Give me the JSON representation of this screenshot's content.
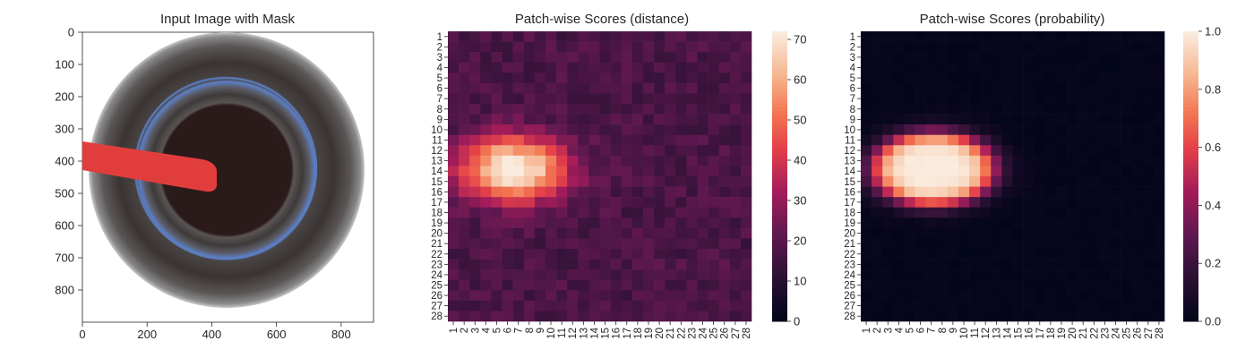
{
  "chart_data": [
    {
      "type": "image",
      "title": "Input Image with Mask",
      "x_ticks": [
        0,
        200,
        400,
        600,
        800
      ],
      "y_ticks": [
        0,
        100,
        200,
        300,
        400,
        500,
        600,
        700,
        800
      ],
      "xlim": [
        0,
        900
      ],
      "ylim": [
        900,
        0
      ],
      "image": {
        "background": "#ffffff",
        "ring_colors": [
          "#8a8a8a",
          "#4a4343",
          "#5b5656",
          "#7e7e86",
          "#3b3030"
        ],
        "glass_edge_color": "#5c7fc6",
        "center_color": "#2a1a1a",
        "center": [
          445,
          510
        ],
        "mask_color": "#e23d3d",
        "mask_polygon": [
          [
            0,
            340
          ],
          [
            390,
            400
          ],
          [
            410,
            420
          ],
          [
            410,
            495
          ],
          [
            380,
            500
          ],
          [
            0,
            430
          ]
        ]
      }
    },
    {
      "type": "heatmap",
      "title": "Patch-wise Scores (distance)",
      "x_ticks": [
        "1",
        "2",
        "3",
        "4",
        "5",
        "6",
        "7",
        "8",
        "9",
        "10",
        "11",
        "12",
        "13",
        "14",
        "15",
        "16",
        "17",
        "18",
        "19",
        "20",
        "21",
        "22",
        "23",
        "24",
        "25",
        "26",
        "27",
        "28"
      ],
      "y_ticks": [
        "1",
        "2",
        "3",
        "4",
        "5",
        "6",
        "7",
        "8",
        "9",
        "10",
        "11",
        "12",
        "13",
        "14",
        "15",
        "16",
        "17",
        "18",
        "19",
        "20",
        "21",
        "22",
        "23",
        "24",
        "25",
        "26",
        "27",
        "28"
      ],
      "colorbar": {
        "min": 0,
        "max": 72,
        "ticks": [
          0,
          10,
          20,
          30,
          40,
          50,
          60,
          70
        ]
      },
      "colormap": "rocket",
      "hot_region": {
        "center_row": 13.8,
        "center_col": 6.5,
        "peak": 72,
        "background": 20
      }
    },
    {
      "type": "heatmap",
      "title": "Patch-wise Scores (probability)",
      "x_ticks": [
        "1",
        "2",
        "3",
        "4",
        "5",
        "6",
        "7",
        "8",
        "9",
        "10",
        "11",
        "12",
        "13",
        "14",
        "15",
        "16",
        "17",
        "18",
        "19",
        "20",
        "21",
        "22",
        "23",
        "24",
        "25",
        "26",
        "27",
        "28"
      ],
      "y_ticks": [
        "1",
        "2",
        "3",
        "4",
        "5",
        "6",
        "7",
        "8",
        "9",
        "10",
        "11",
        "12",
        "13",
        "14",
        "15",
        "16",
        "17",
        "18",
        "19",
        "20",
        "21",
        "22",
        "23",
        "24",
        "25",
        "26",
        "27",
        "28"
      ],
      "colorbar": {
        "min": 0,
        "max": 1,
        "ticks": [
          "0.0",
          "0.2",
          "0.4",
          "0.6",
          "0.8",
          "1.0"
        ]
      },
      "colormap": "rocket",
      "hot_region": {
        "center_row": 13.8,
        "center_col": 7.2,
        "peak": 1.0,
        "background": 0.0
      }
    }
  ]
}
